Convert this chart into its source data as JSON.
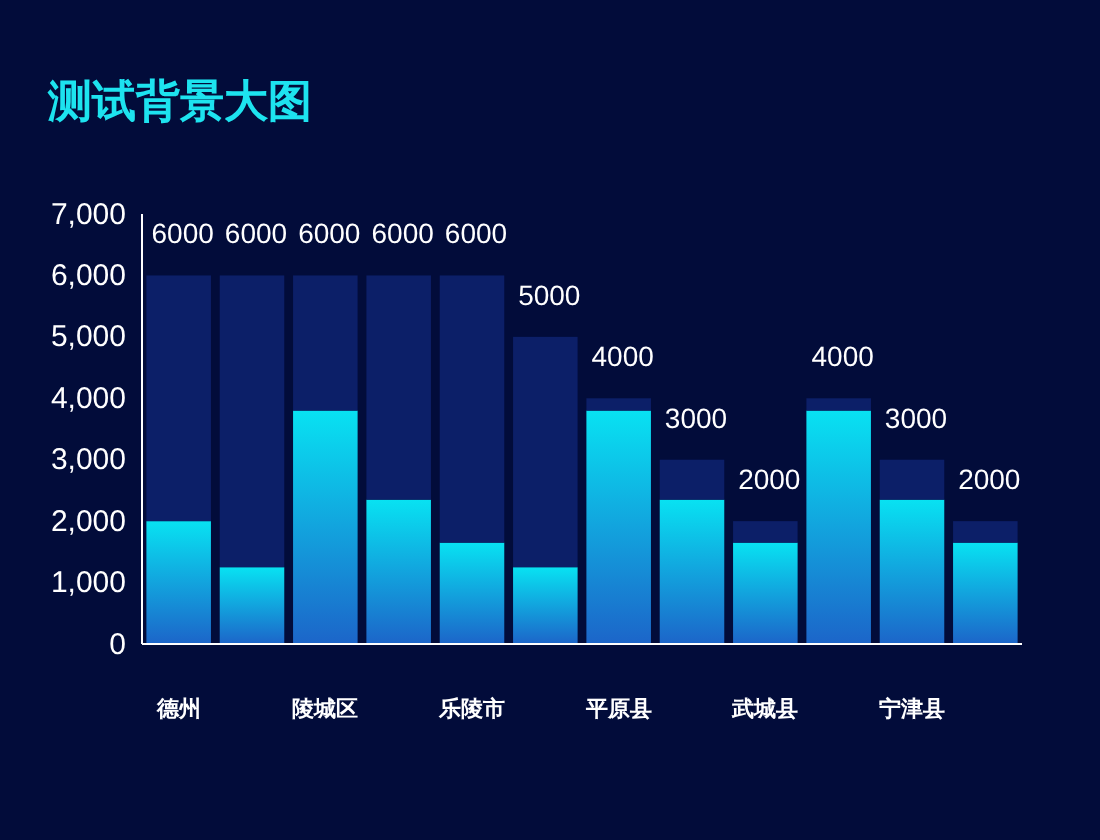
{
  "chart_data": {
    "type": "bar",
    "title": "测试背景大图",
    "categories": [
      "德州",
      null,
      "陵城区",
      null,
      "乐陵市",
      null,
      "平原县",
      null,
      "武城县",
      null,
      "宁津县",
      null
    ],
    "stacked": true,
    "series": [
      {
        "color": "#08e2f2",
        "values": [
          2000,
          1250,
          3800,
          2350,
          1650,
          1250,
          3800,
          2350,
          1650,
          3800,
          2350,
          1650
        ]
      },
      {
        "color": "#0c1f68",
        "values": [
          4000,
          4750,
          2200,
          3650,
          4350,
          3750,
          200,
          650,
          350,
          200,
          650,
          350
        ]
      }
    ],
    "totals": [
      "6000",
      "6000",
      "6000",
      "6000",
      "6000",
      "5000",
      "4000",
      "3000",
      "2000",
      "4000",
      "3000",
      "2000"
    ],
    "ylim": [
      0,
      7000
    ],
    "yticks": [
      0,
      {
        "value": 1000,
        "label": "1,000"
      },
      {
        "value": 2000,
        "label": "2,000"
      },
      {
        "value": 3000,
        "label": "3,000"
      },
      {
        "value": 4000,
        "label": "4,000"
      },
      {
        "value": 5000,
        "label": "5,000"
      },
      {
        "value": 6000,
        "label": "6,000"
      },
      {
        "value": 7000,
        "label": "7,000"
      }
    ]
  }
}
